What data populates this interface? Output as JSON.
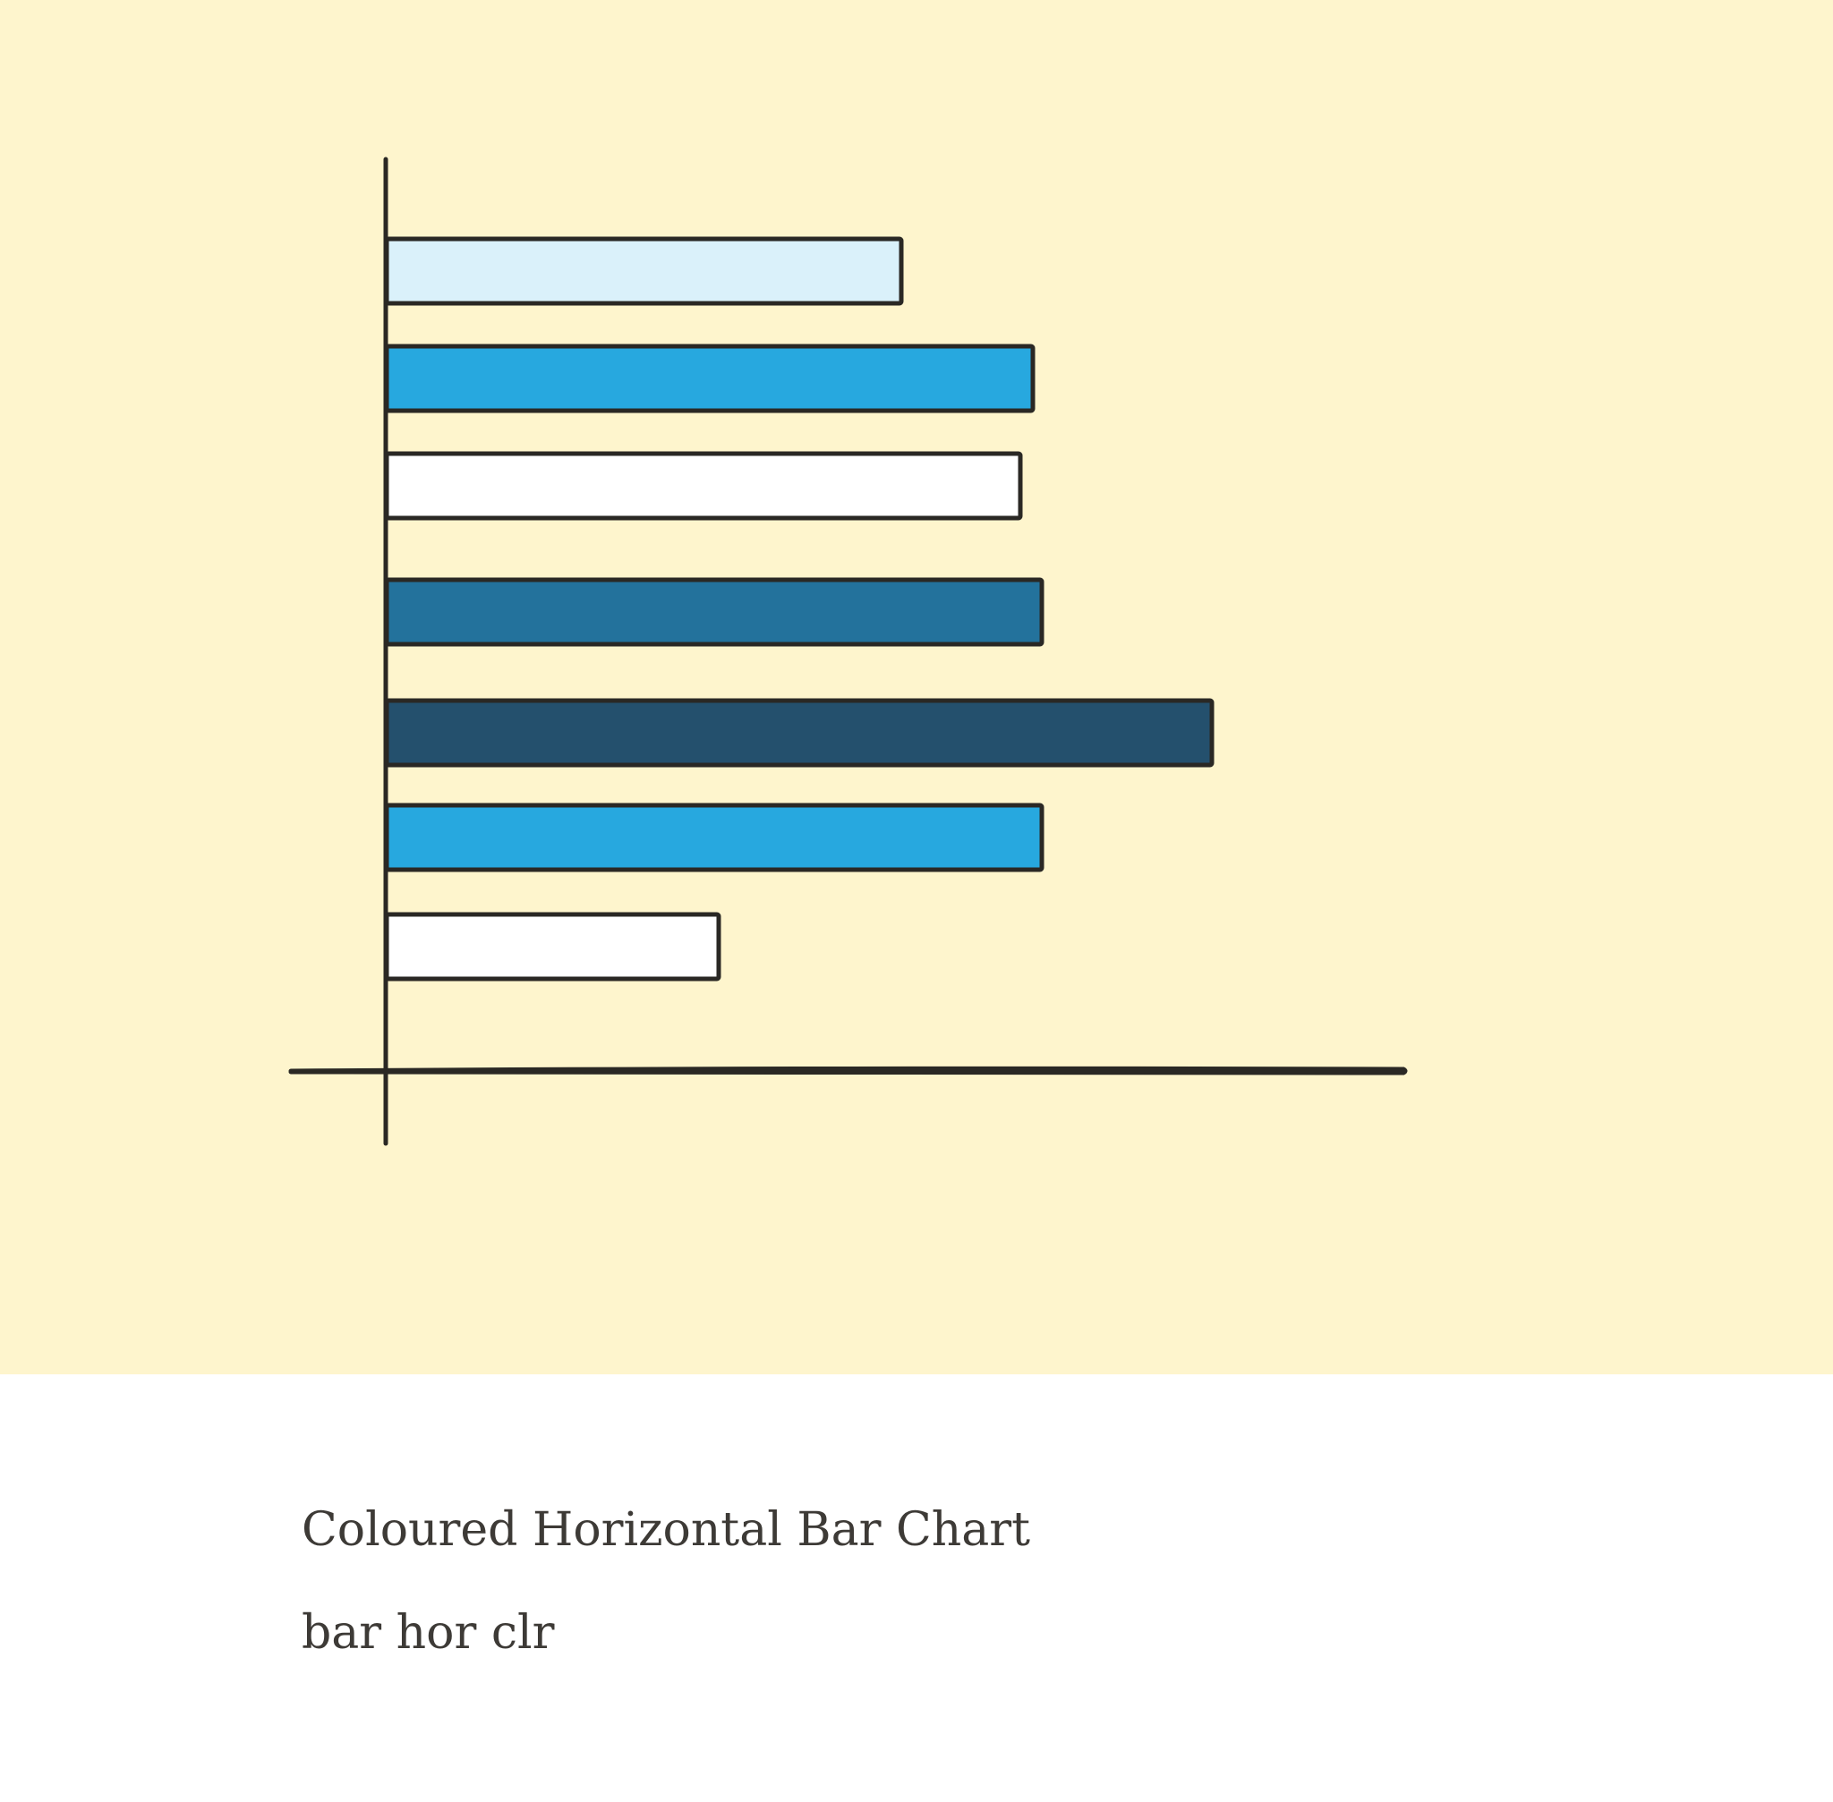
{
  "card": {
    "background": "#ffffff",
    "illustration_background": "#fef5cd",
    "title": "Coloured Horizontal Bar Chart",
    "tags": "bar hor clr"
  },
  "illustration": {
    "icon": "coloured-horizontal-bar-chart-icon",
    "stroke_color": "#2a2824",
    "bars": [
      {
        "fill": "#daf1fa",
        "length": 0.605
      },
      {
        "fill": "#27a8df",
        "length": 0.76
      },
      {
        "fill": "#ffffff",
        "length": 0.745
      },
      {
        "fill": "#23729c",
        "length": 0.77
      },
      {
        "fill": "#24506d",
        "length": 0.97
      },
      {
        "fill": "#27a8df",
        "length": 0.77
      },
      {
        "fill": "#ffffff",
        "length": 0.39
      }
    ]
  }
}
